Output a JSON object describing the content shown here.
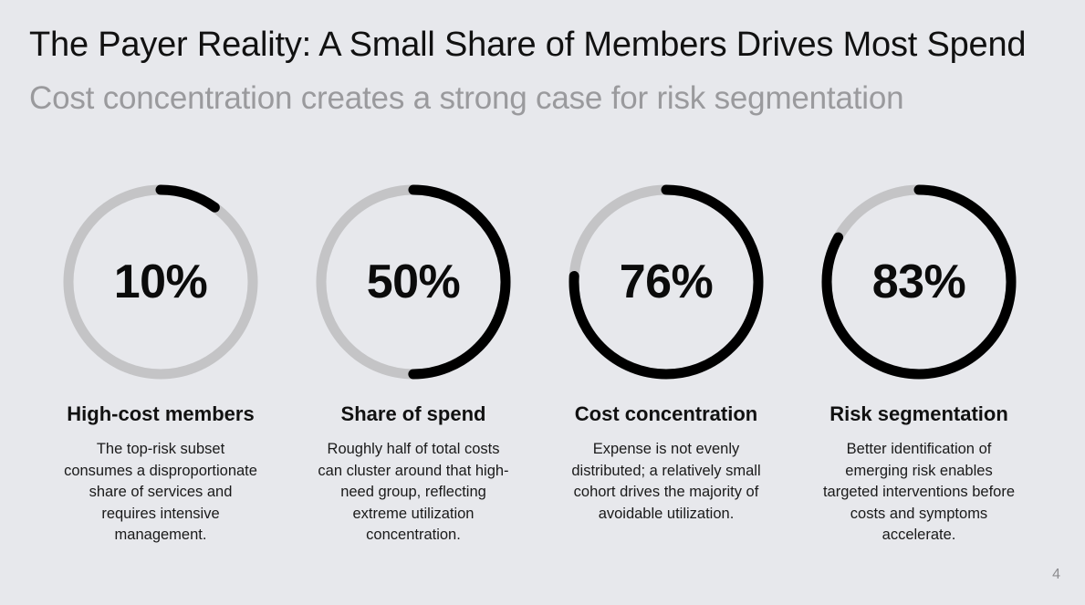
{
  "title": "The Payer Reality: A Small Share of Members Drives Most Spend",
  "subtitle": "Cost concentration creates a strong case for risk segmentation",
  "colors": {
    "background": "#e7e8ec",
    "ring_track": "#c4c4c6",
    "ring_fill": "#000000",
    "subtitle": "#9a9a9d"
  },
  "stats": [
    {
      "value_text": "10%",
      "percent": 10,
      "label": "High-cost members",
      "description": "The top-risk subset consumes a disproportionate share of services and requires intensive management."
    },
    {
      "value_text": "50%",
      "percent": 50,
      "label": "Share of spend",
      "description": "Roughly half of total costs can cluster around that high-need group, reflecting extreme utilization concentration."
    },
    {
      "value_text": "76%",
      "percent": 76,
      "label": "Cost concentration",
      "description": "Expense is not evenly distributed; a relatively small cohort drives the majority of avoidable utilization."
    },
    {
      "value_text": "83%",
      "percent": 83,
      "label": "Risk segmentation",
      "description": "Better identification of emerging risk enables targeted interventions before costs and symptoms accelerate."
    }
  ],
  "page_number": "4"
}
